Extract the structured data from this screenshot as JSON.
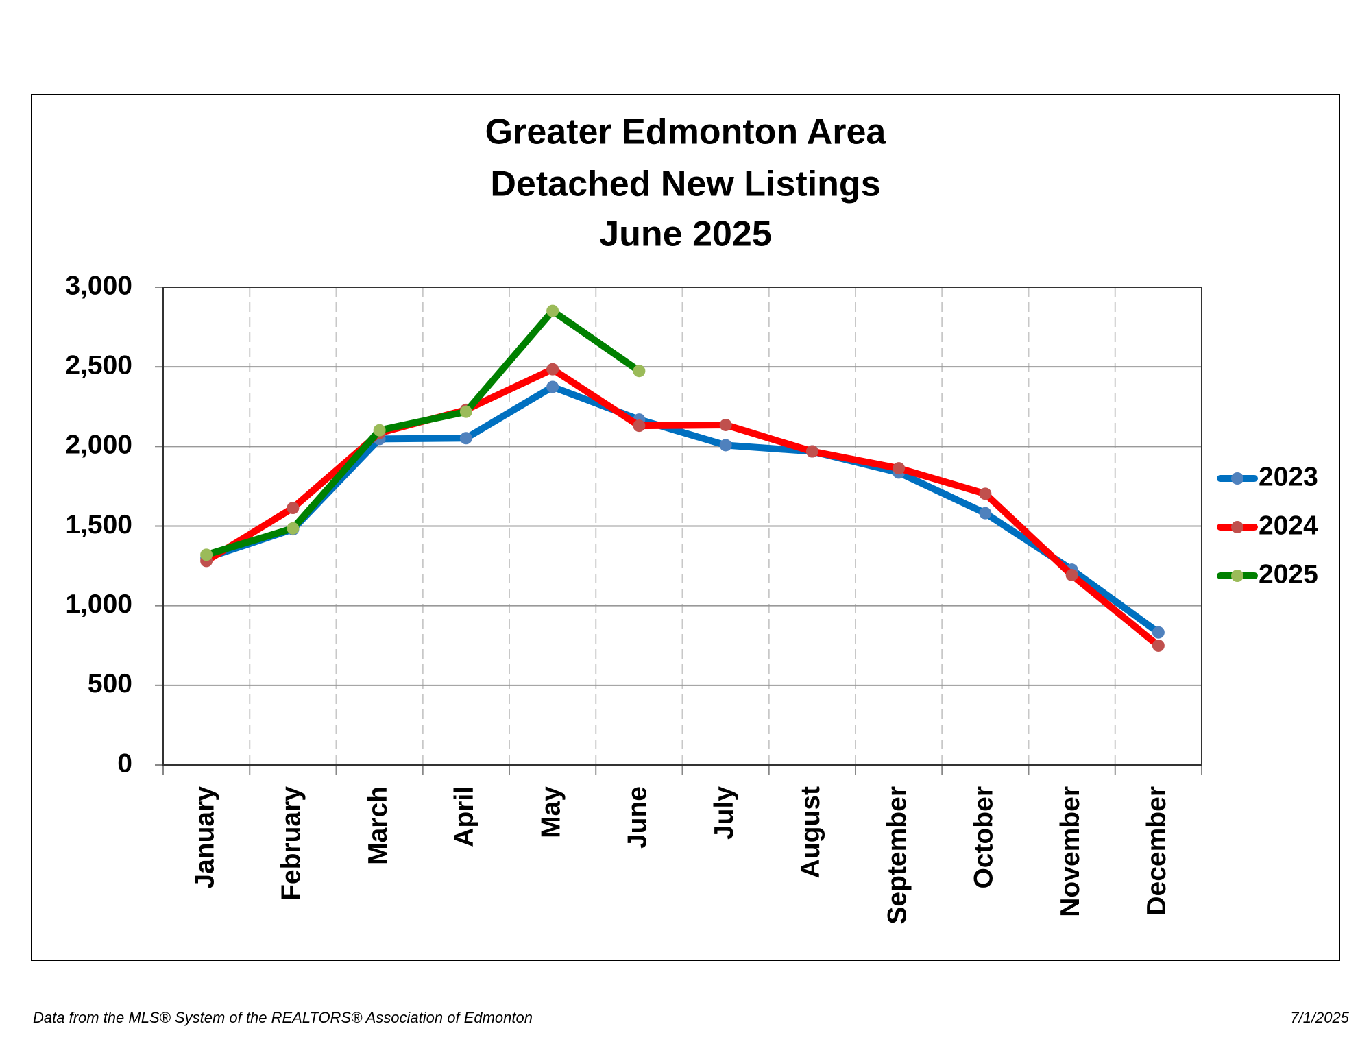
{
  "chart_data": {
    "type": "line",
    "title": [
      "Greater Edmonton Area",
      "Detached New Listings",
      "June 2025"
    ],
    "categories": [
      "January",
      "February",
      "March",
      "April",
      "May",
      "June",
      "July",
      "August",
      "September",
      "October",
      "November",
      "December"
    ],
    "series": [
      {
        "name": "2023",
        "color": "#0070c0",
        "marker_color": "#4f81bd",
        "values": [
          1300,
          1480,
          2047,
          2052,
          2374,
          2169,
          2008,
          1969,
          1836,
          1581,
          1226,
          832
        ]
      },
      {
        "name": "2024",
        "color": "#ff0000",
        "marker_color": "#c0504d",
        "values": [
          1281,
          1614,
          2085,
          2230,
          2485,
          2130,
          2135,
          1969,
          1863,
          1703,
          1192,
          749
        ]
      },
      {
        "name": "2025",
        "color": "#008000",
        "marker_color": "#9bbb59",
        "values": [
          1320,
          1486,
          2102,
          2218,
          2851,
          2474,
          null,
          null,
          null,
          null,
          null,
          null
        ]
      }
    ],
    "ylim": [
      0,
      3000
    ],
    "yticks": [
      0,
      500,
      {
        "value": 1000,
        "label": "1,000"
      },
      {
        "value": 1500,
        "label": "1,500"
      },
      {
        "value": 2000,
        "label": "2,000"
      },
      {
        "value": 2500,
        "label": "2,500"
      },
      {
        "value": 3000,
        "label": "3,000"
      }
    ],
    "grid": true,
    "legend": "right",
    "source": "Data from the MLS® System of the REALTORS® Association of Edmonton",
    "date": "7/1/2025"
  }
}
